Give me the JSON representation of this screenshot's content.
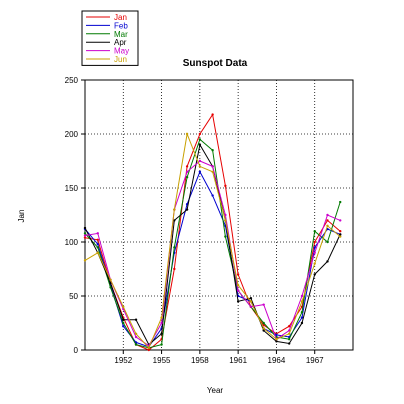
{
  "chart_data": {
    "type": "line",
    "title": "Sunspot Data",
    "xlabel": "Year",
    "ylabel": "Jan",
    "xlim": [
      1949,
      1970
    ],
    "ylim": [
      0,
      250
    ],
    "xticks": [
      1952,
      1955,
      1958,
      1961,
      1964,
      1967
    ],
    "yticks": [
      0,
      50,
      100,
      150,
      200,
      250
    ],
    "grid": true,
    "legend_position": "top-left",
    "x": [
      1949,
      1950,
      1951,
      1952,
      1953,
      1954,
      1955,
      1956,
      1957,
      1958,
      1959,
      1960,
      1961,
      1962,
      1963,
      1964,
      1965,
      1966,
      1967,
      1968,
      1969
    ],
    "series": [
      {
        "name": "Jan",
        "color": "#e60000",
        "values": [
          104,
          102,
          62,
          30,
          5,
          0,
          10,
          75,
          170,
          200,
          218,
          152,
          70,
          40,
          23,
          15,
          22,
          40,
          100,
          120,
          110
        ]
      },
      {
        "name": "Feb",
        "color": "#0000d0",
        "values": [
          112,
          98,
          60,
          22,
          7,
          3,
          20,
          90,
          135,
          165,
          143,
          115,
          50,
          45,
          20,
          14,
          12,
          30,
          95,
          112,
          107
        ]
      },
      {
        "name": "Mar",
        "color": "#007a00",
        "values": [
          108,
          95,
          58,
          25,
          5,
          2,
          5,
          95,
          160,
          195,
          185,
          105,
          55,
          40,
          25,
          12,
          10,
          35,
          110,
          100,
          137
        ]
      },
      {
        "name": "Apr",
        "color": "#000000",
        "values": [
          113,
          90,
          62,
          28,
          28,
          5,
          15,
          120,
          130,
          190,
          170,
          120,
          45,
          48,
          18,
          8,
          6,
          25,
          70,
          82,
          107
        ]
      },
      {
        "name": "May",
        "color": "#cc00cc",
        "values": [
          106,
          108,
          65,
          38,
          12,
          4,
          25,
          130,
          165,
          175,
          170,
          125,
          55,
          40,
          42,
          10,
          18,
          50,
          90,
          125,
          120
        ]
      },
      {
        "name": "Jun",
        "color": "#c8a000",
        "values": [
          83,
          90,
          65,
          40,
          15,
          2,
          30,
          130,
          200,
          170,
          165,
          120,
          60,
          45,
          20,
          10,
          15,
          45,
          80,
          115,
          105
        ]
      }
    ]
  }
}
